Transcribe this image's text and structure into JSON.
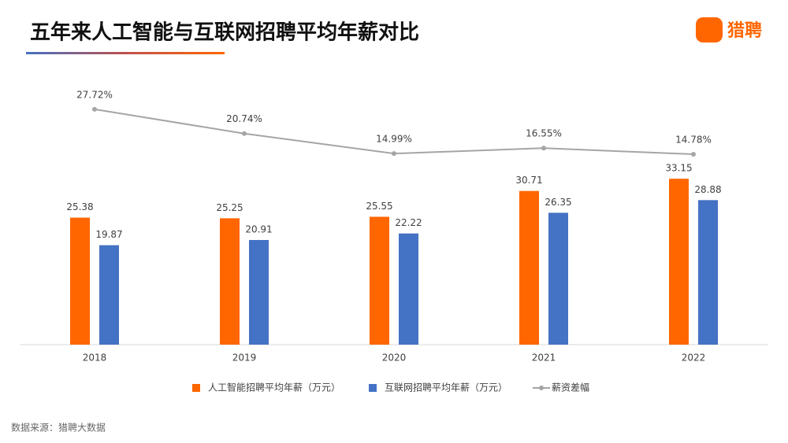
{
  "chart_data": {
    "type": "bar-line",
    "title": "五年来人工智能与互联网招聘平均年薪对比",
    "brand": "猎聘",
    "source": "数据来源：猎聘大数据",
    "categories": [
      "2018",
      "2019",
      "2020",
      "2021",
      "2022"
    ],
    "ylim": [
      0,
      50
    ],
    "y2lim": [
      -40,
      32
    ],
    "series": [
      {
        "name": "人工智能招聘平均年薪（万元）",
        "color": "#ff6600",
        "type": "bar",
        "values": [
          25.38,
          25.25,
          25.55,
          30.71,
          33.15
        ]
      },
      {
        "name": "互联网招聘平均年薪（万元）",
        "color": "#4472c4",
        "type": "bar",
        "values": [
          19.87,
          20.91,
          22.22,
          26.35,
          28.88
        ]
      },
      {
        "name": "薪资差幅",
        "color": "#a5a5a5",
        "type": "line",
        "axis": "y2",
        "values": [
          27.72,
          20.74,
          14.99,
          16.55,
          14.78
        ],
        "value_labels": [
          "27.72%",
          "20.74%",
          "14.99%",
          "16.55%",
          "14.78%"
        ]
      }
    ]
  }
}
